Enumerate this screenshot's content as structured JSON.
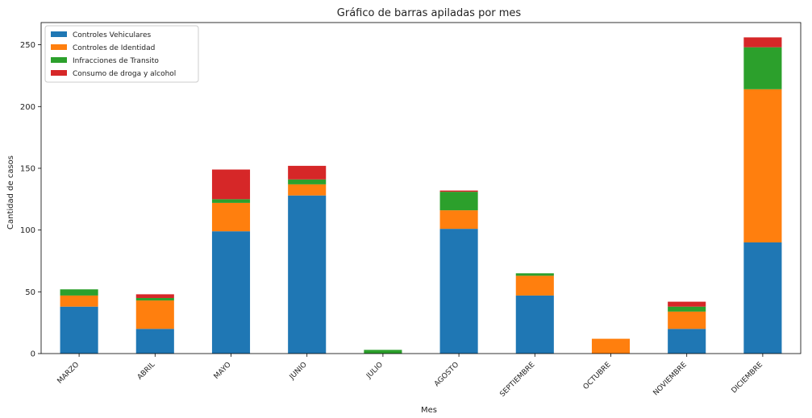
{
  "chart_data": {
    "type": "bar",
    "stacked": true,
    "title": "Gráfico de barras apiladas por mes",
    "xlabel": "Mes",
    "ylabel": "Cantidad de casos",
    "categories": [
      "MARZO",
      "ABRIL",
      "MAYO",
      "JUNIO",
      "JULIO",
      "AGOSTO",
      "SEPTIEMBRE",
      "OCTUBRE",
      "NOVIEMBRE",
      "DICIEMBRE"
    ],
    "series": [
      {
        "name": "Controles Vehiculares",
        "color": "#1f77b4",
        "values": [
          38,
          20,
          99,
          128,
          0,
          101,
          47,
          0,
          20,
          90
        ]
      },
      {
        "name": "Controles de Identidad",
        "color": "#ff7f0e",
        "values": [
          9,
          23,
          23,
          9,
          0,
          15,
          16,
          12,
          14,
          124
        ]
      },
      {
        "name": "Infracciones de Transito",
        "color": "#2ca02c",
        "values": [
          5,
          2,
          3,
          4,
          3,
          15,
          2,
          0,
          4,
          34
        ]
      },
      {
        "name": "Consumo de droga y alcohol",
        "color": "#d62728",
        "values": [
          0,
          3,
          24,
          11,
          0,
          1,
          0,
          0,
          4,
          8
        ]
      }
    ],
    "ylim": [
      0,
      268
    ],
    "yticks": [
      0,
      50,
      100,
      150,
      200,
      250
    ],
    "legend_position": "top-left",
    "grid": false
  }
}
